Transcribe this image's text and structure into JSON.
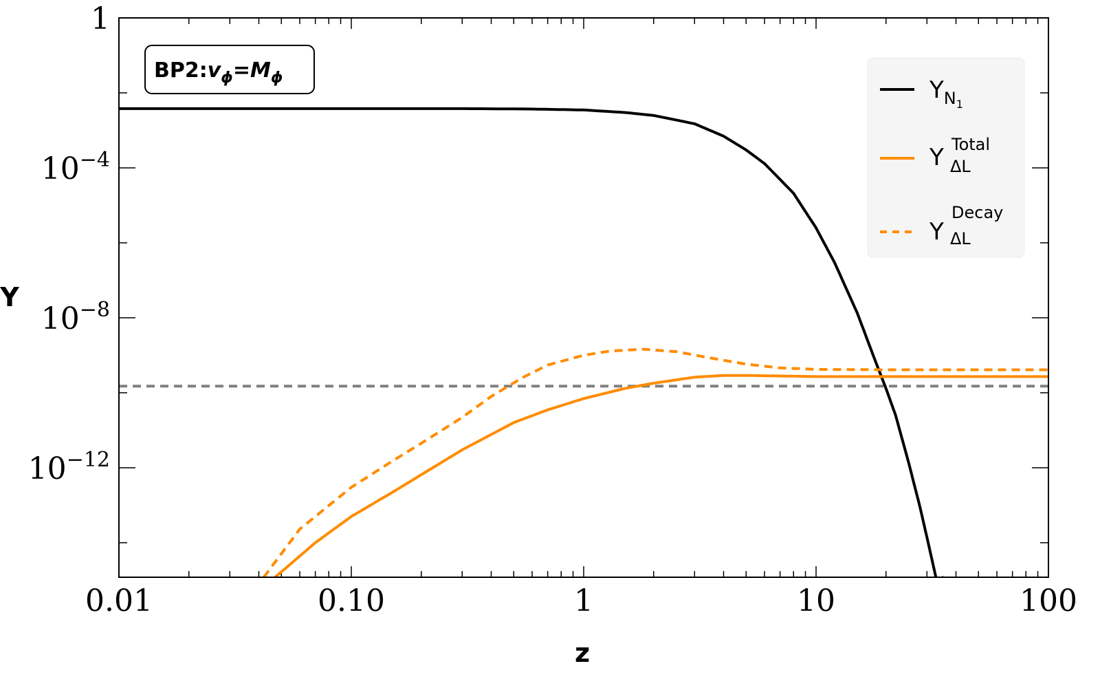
{
  "chart_data": {
    "type": "line",
    "xlabel": "z",
    "ylabel": "Y",
    "x_scale": "log",
    "y_scale": "log",
    "xlim": [
      0.01,
      100
    ],
    "ylim": [
      1.2e-15,
      1
    ],
    "x_ticks": [
      {
        "value": 0.01,
        "label": "0.01"
      },
      {
        "value": 0.1,
        "label": "0.10"
      },
      {
        "value": 1,
        "label": "1"
      },
      {
        "value": 10,
        "label": "10"
      },
      {
        "value": 100,
        "label": "100"
      }
    ],
    "y_ticks": [
      {
        "value": 1,
        "base": "1",
        "exp": ""
      },
      {
        "value": 0.0001,
        "base": "10",
        "exp": "−4"
      },
      {
        "value": 1e-08,
        "base": "10",
        "exp": "−8"
      },
      {
        "value": 1e-12,
        "base": "10",
        "exp": "−12"
      }
    ],
    "annotation": {
      "main": "BP2:",
      "v": "v",
      "v_sub": "ϕ",
      "eq": "=",
      "m": "M",
      "m_sub": "ϕ"
    },
    "legend": {
      "position": "top-right",
      "entries": [
        {
          "main": "Y",
          "sub": "N",
          "subsub": "1",
          "sup": "",
          "style": "solid",
          "color": "#000000"
        },
        {
          "main": "Y",
          "sub": "ΔL",
          "subsub": "",
          "sup": "Total",
          "style": "solid",
          "color": "#ff8c00"
        },
        {
          "main": "Y",
          "sub": "ΔL",
          "subsub": "",
          "sup": "Decay",
          "style": "dashed",
          "color": "#ff8c00"
        }
      ]
    },
    "reference_line": {
      "y": 1.5e-10,
      "style": "dashed",
      "color": "#808080"
    },
    "series": [
      {
        "name": "Y_N1",
        "color": "#000000",
        "style": "solid",
        "x": [
          0.01,
          0.1,
          0.3,
          0.6,
          1,
          1.5,
          2,
          3,
          4,
          5,
          6,
          8,
          10,
          12,
          15,
          18,
          20,
          22,
          25,
          28,
          30,
          33,
          35.4
        ],
        "y": [
          0.0038,
          0.0038,
          0.0038,
          0.0037,
          0.0035,
          0.003,
          0.0025,
          0.0015,
          0.0007,
          0.0003,
          0.00013,
          2.1e-05,
          2.5e-06,
          3e-07,
          1.4e-08,
          7e-10,
          1.3e-10,
          2.5e-11,
          1.4e-12,
          9e-14,
          1.4e-14,
          1e-15,
          1.2e-15
        ]
      },
      {
        "name": "Y_ΔL Total",
        "color": "#ff8c00",
        "style": "solid",
        "x": [
          0.047,
          0.07,
          0.1,
          0.15,
          0.2,
          0.3,
          0.5,
          0.7,
          1,
          1.5,
          2,
          3,
          4,
          5,
          7,
          10,
          20,
          50,
          100
        ],
        "y": [
          1.2e-15,
          1e-14,
          5e-14,
          2.2e-13,
          6.5e-13,
          3e-12,
          1.6e-11,
          3.5e-11,
          7e-11,
          1.3e-10,
          1.8e-10,
          2.6e-10,
          2.9e-10,
          2.9e-10,
          2.8e-10,
          2.7e-10,
          2.7e-10,
          2.7e-10,
          2.7e-10
        ]
      },
      {
        "name": "Y_ΔL Decay",
        "color": "#ff8c00",
        "style": "dashed",
        "x": [
          0.042,
          0.06,
          0.1,
          0.15,
          0.2,
          0.3,
          0.4,
          0.55,
          0.7,
          1,
          1.3,
          1.8,
          2.5,
          3.5,
          5,
          7,
          10,
          20,
          50,
          100
        ],
        "y": [
          1.2e-15,
          2.3e-14,
          3e-13,
          1.5e-12,
          4.5e-12,
          2.2e-11,
          8e-11,
          2.6e-10,
          5.5e-10,
          1e-09,
          1.3e-09,
          1.45e-09,
          1.25e-09,
          8.5e-10,
          5.8e-10,
          4.6e-10,
          4.2e-10,
          4.1e-10,
          4.1e-10,
          4.1e-10
        ]
      }
    ]
  }
}
